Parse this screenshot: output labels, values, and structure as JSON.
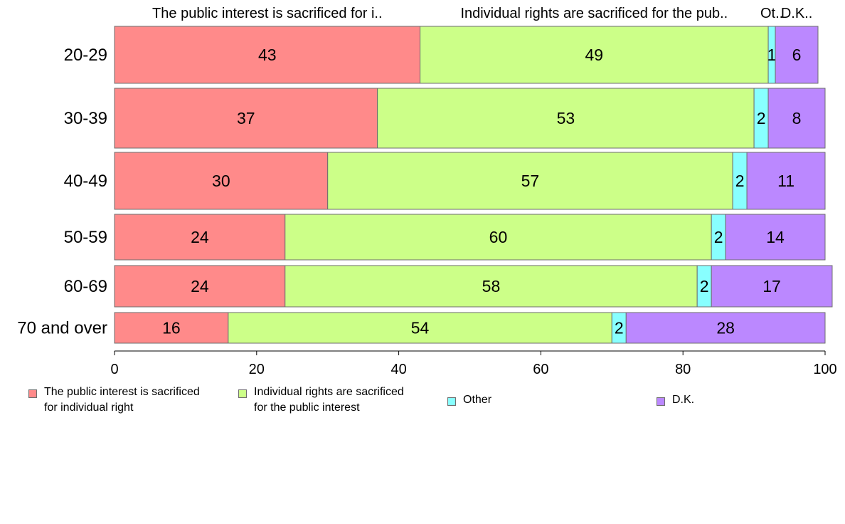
{
  "chart_data": {
    "type": "bar",
    "orientation": "horizontal",
    "stacked": true,
    "categories": [
      "20-29",
      "30-39",
      "40-49",
      "50-59",
      "60-69",
      "70 and over"
    ],
    "series": [
      {
        "name": "The public interest is sacrificed for individual right",
        "short_label": "The public interest is sacrificed for i..",
        "color": "#ff8a8a",
        "values": [
          43,
          37,
          30,
          24,
          24,
          16
        ]
      },
      {
        "name": "Individual rights are sacrificed for the public interest",
        "short_label": "Individual rights are sacrificed for the pub..",
        "color": "#ccff88",
        "values": [
          49,
          53,
          57,
          60,
          58,
          54
        ]
      },
      {
        "name": "Other",
        "short_label": "Ot..",
        "color": "#88ffff",
        "values": [
          1,
          2,
          2,
          2,
          2,
          2
        ]
      },
      {
        "name": "D.K.",
        "short_label": "D.K..",
        "color": "#bb88ff",
        "values": [
          6,
          8,
          11,
          14,
          17,
          28
        ]
      }
    ],
    "xlim": [
      0,
      100
    ],
    "xticks": [
      0,
      20,
      40,
      60,
      80,
      100
    ],
    "legend_position": "bottom",
    "grid": false
  },
  "legend": {
    "items": [
      {
        "label": "The public interest is sacrificed\nfor individual right",
        "color": "#ff8a8a"
      },
      {
        "label": "Individual rights are sacrificed\nfor the public interest",
        "color": "#ccff88"
      },
      {
        "label": "Other",
        "color": "#88ffff"
      },
      {
        "label": "D.K.",
        "color": "#bb88ff"
      }
    ]
  }
}
